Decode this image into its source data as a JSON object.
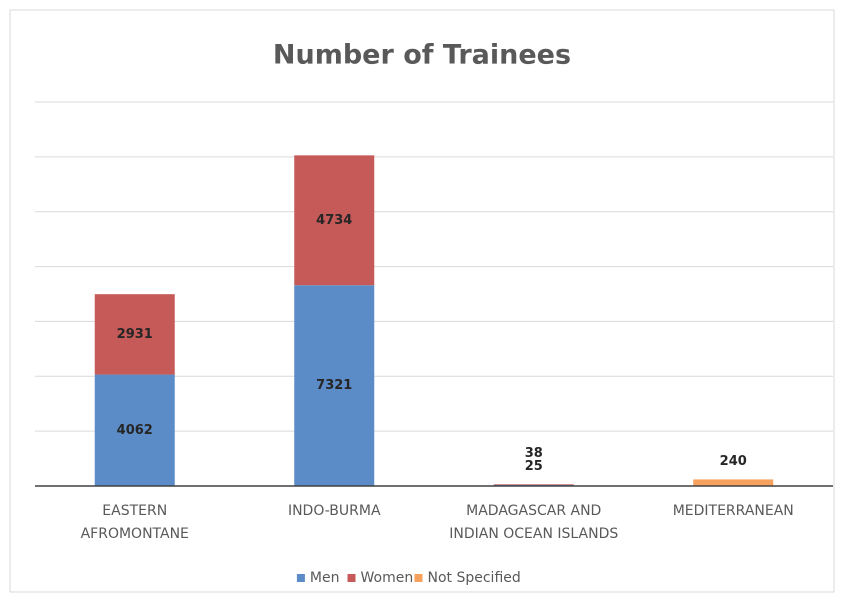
{
  "chart_data": {
    "type": "stacked_bar",
    "title": "Number of Trainees",
    "categories": [
      [
        "EASTERN",
        "AFROMONTANE"
      ],
      [
        "INDO-BURMA"
      ],
      [
        "MADAGASCAR AND",
        "INDIAN OCEAN ISLANDS"
      ],
      [
        "MEDITERRANEAN"
      ]
    ],
    "series": [
      {
        "name": "Men",
        "color": "#5b8cc8",
        "values": [
          4062,
          7321,
          38,
          null
        ]
      },
      {
        "name": "Women",
        "color": "#c55a58",
        "values": [
          2931,
          4734,
          25,
          null
        ]
      },
      {
        "name": "Not Specified",
        "color": "#f6a15e",
        "values": [
          null,
          null,
          null,
          240
        ]
      }
    ],
    "ylim": [
      0,
      14000
    ],
    "yticks": [
      0,
      2000,
      4000,
      6000,
      8000,
      10000,
      12000,
      14000
    ],
    "grid": true,
    "legend": "bottom"
  }
}
